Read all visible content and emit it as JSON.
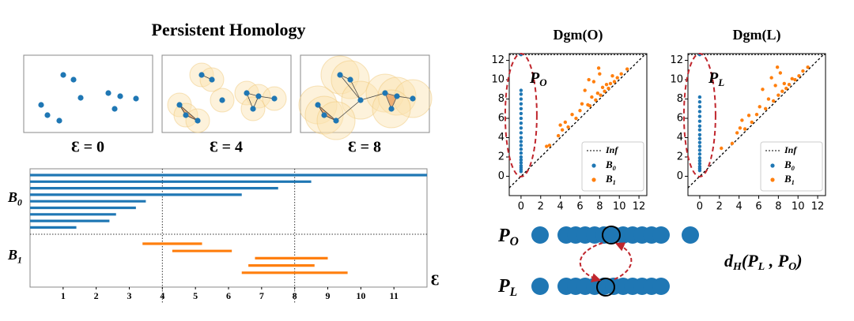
{
  "left": {
    "title": "Persistent Homology",
    "panels": [
      {
        "label": "Ɛ = 0"
      },
      {
        "label": "Ɛ = 4"
      },
      {
        "label": "Ɛ = 8"
      }
    ],
    "barcode": {
      "x_label": "Ɛ",
      "xlim": [
        0,
        12
      ],
      "xticks": [
        1,
        2,
        3,
        4,
        5,
        6,
        7,
        8,
        9,
        10,
        11
      ],
      "markers": [
        4,
        8
      ],
      "groups": [
        {
          "label": {
            "base": "B",
            "sub": "0"
          },
          "color": "#1f77b4",
          "bars": [
            {
              "start": 0,
              "end": 12
            },
            {
              "start": 0,
              "end": 8.5
            },
            {
              "start": 0,
              "end": 7.5
            },
            {
              "start": 0,
              "end": 6.4
            },
            {
              "start": 0,
              "end": 3.5
            },
            {
              "start": 0,
              "end": 3.2
            },
            {
              "start": 0,
              "end": 2.6
            },
            {
              "start": 0,
              "end": 2.4
            },
            {
              "start": 0,
              "end": 1.4
            }
          ]
        },
        {
          "label": {
            "base": "B",
            "sub": "1"
          },
          "color": "#ff7f0e",
          "bars": [
            {
              "start": 3.4,
              "end": 5.2
            },
            {
              "start": 4.3,
              "end": 6.1
            },
            {
              "start": 6.8,
              "end": 9.0
            },
            {
              "start": 6.6,
              "end": 8.6
            },
            {
              "start": 6.4,
              "end": 9.6
            }
          ]
        }
      ]
    }
  },
  "diagrams": [
    {
      "title": "Dgm(O)",
      "annotation": {
        "base": "P",
        "sub": "O"
      },
      "xlim": [
        -1.2,
        12.8
      ],
      "ylim": [
        -2,
        12.7
      ],
      "xticks": [
        0,
        2,
        4,
        6,
        8,
        10,
        12
      ],
      "yticks": [
        0,
        2,
        4,
        6,
        8,
        10,
        12
      ],
      "inf": {
        "label": "Inf",
        "value": 12.6
      },
      "series": [
        {
          "name": {
            "base": "B",
            "sub": "0"
          },
          "color": "#1f77b4",
          "x": [
            0,
            0,
            0,
            0,
            0,
            0,
            0,
            0,
            0,
            0,
            0,
            0,
            0,
            0,
            0,
            0,
            0,
            0,
            0,
            0,
            0,
            0,
            0
          ],
          "y": [
            0.5,
            0.7,
            0.9,
            1.1,
            1.4,
            1.7,
            2.0,
            2.4,
            2.8,
            3.2,
            3.6,
            4.0,
            4.5,
            5.0,
            5.5,
            6.0,
            6.5,
            7.0,
            7.5,
            8.0,
            8.5,
            8.9,
            12.6
          ]
        },
        {
          "name": {
            "base": "B",
            "sub": "1"
          },
          "color": "#ff7f0e",
          "x": [
            2.6,
            2.9,
            3.8,
            4.0,
            4.2,
            4.5,
            4.8,
            5.2,
            5.6,
            6.0,
            6.2,
            6.5,
            6.8,
            7.0,
            7.2,
            7.4,
            7.6,
            7.8,
            8.0,
            8.1,
            8.3,
            8.5,
            8.7,
            8.9,
            9.1,
            9.3,
            9.5,
            9.8,
            10.2,
            10.8,
            7.9,
            6.9
          ],
          "y": [
            3.1,
            3.2,
            4.2,
            5.3,
            4.8,
            5.6,
            5.1,
            6.4,
            6.0,
            6.8,
            7.5,
            8.9,
            7.4,
            7.3,
            8.2,
            9.8,
            7.9,
            8.6,
            10.6,
            8.4,
            9.2,
            8.8,
            9.5,
            9.1,
            9.6,
            10.4,
            9.8,
            10.2,
            10.6,
            11.1,
            11.2,
            10.0
          ]
        }
      ]
    },
    {
      "title": "Dgm(L)",
      "annotation": {
        "base": "P",
        "sub": "L"
      },
      "xlim": [
        -1.2,
        12.8
      ],
      "ylim": [
        -2,
        12.7
      ],
      "xticks": [
        0,
        2,
        4,
        6,
        8,
        10,
        12
      ],
      "yticks": [
        0,
        2,
        4,
        6,
        8,
        10,
        12
      ],
      "inf": {
        "label": "Inf",
        "value": 12.6
      },
      "series": [
        {
          "name": {
            "base": "B",
            "sub": "0"
          },
          "color": "#1f77b4",
          "x": [
            0,
            0,
            0,
            0,
            0,
            0,
            0,
            0,
            0,
            0,
            0,
            0,
            0,
            0,
            0,
            0,
            0,
            0,
            0,
            0,
            0
          ],
          "y": [
            0.6,
            0.8,
            1.0,
            1.3,
            1.6,
            1.9,
            2.3,
            2.7,
            3.1,
            3.5,
            3.9,
            4.3,
            4.8,
            5.2,
            5.7,
            6.2,
            6.7,
            7.2,
            7.7,
            8.2,
            12.6
          ]
        },
        {
          "name": {
            "base": "B",
            "sub": "1"
          },
          "color": "#ff7f0e",
          "x": [
            2.2,
            3.3,
            3.8,
            4.1,
            4.3,
            4.6,
            5.0,
            5.3,
            5.8,
            6.1,
            6.4,
            6.7,
            7.0,
            7.3,
            7.5,
            7.7,
            7.9,
            8.0,
            8.2,
            8.4,
            8.6,
            8.8,
            9.1,
            9.4,
            9.7,
            10.1,
            10.5,
            11.0
          ],
          "y": [
            2.9,
            3.4,
            4.5,
            5.0,
            5.8,
            4.9,
            6.3,
            5.6,
            6.4,
            7.2,
            9.0,
            7.0,
            8.0,
            10.2,
            7.8,
            9.4,
            11.3,
            8.4,
            10.7,
            8.8,
            9.6,
            9.1,
            9.5,
            10.1,
            10.0,
            10.4,
            10.9,
            11.3
          ]
        }
      ]
    }
  ],
  "matching": {
    "top_label": {
      "base": "P",
      "sub": "O"
    },
    "bottom_label": {
      "base": "P",
      "sub": "L"
    },
    "formula": [
      "d",
      "H",
      "(P",
      "L",
      " , P",
      "O",
      ")"
    ]
  }
}
